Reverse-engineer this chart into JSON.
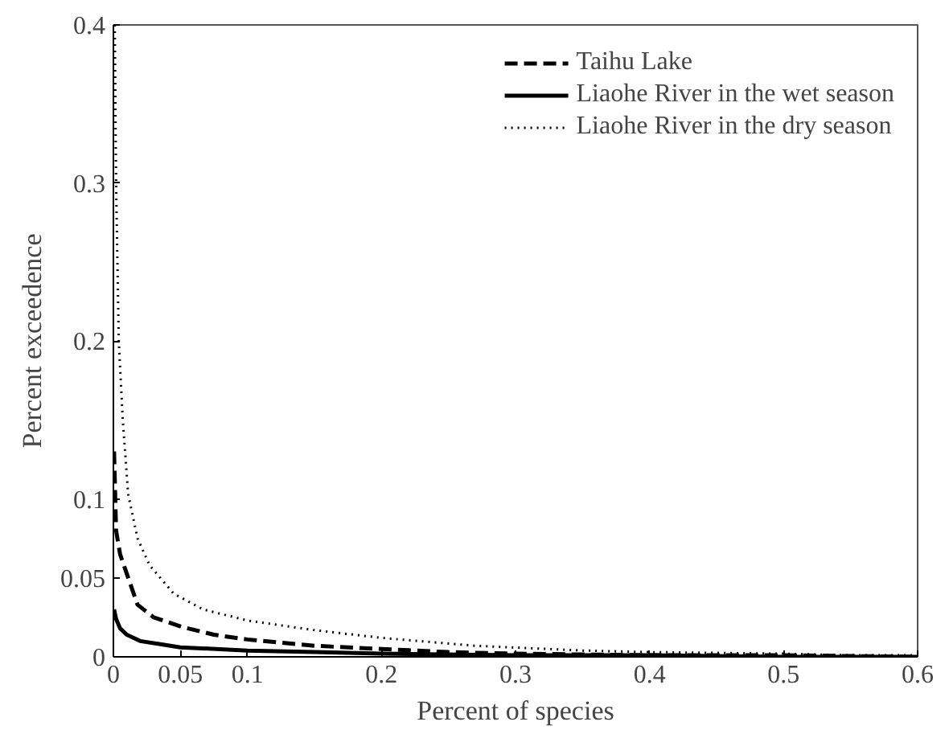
{
  "chart_data": {
    "type": "line",
    "xlabel": "Percent of species",
    "ylabel": "Percent exceedence",
    "xlim": [
      0,
      0.6
    ],
    "ylim": [
      0,
      0.4
    ],
    "xticks": [
      0,
      0.05,
      0.1,
      0.2,
      0.3,
      0.4,
      0.5,
      0.6
    ],
    "yticks": [
      0,
      0.05,
      0.1,
      0.2,
      0.3,
      0.4
    ],
    "grid": false,
    "legend": "top right",
    "marker": "none",
    "series": [
      {
        "name": "Taihu Lake",
        "color": "#000000",
        "line_style": "dashed",
        "x": [
          0.0005,
          0.002,
          0.005,
          0.009,
          0.018,
          0.03,
          0.051,
          0.075,
          0.1,
          0.15,
          0.2,
          0.25,
          0.3,
          0.4,
          0.5,
          0.6
        ],
        "values": [
          0.13,
          0.08,
          0.065,
          0.055,
          0.033,
          0.025,
          0.019,
          0.014,
          0.011,
          0.007,
          0.005,
          0.003,
          0.002,
          0.001,
          0.001,
          0
        ]
      },
      {
        "name": "Liaohe River in the wet season",
        "color": "#000000",
        "line_style": "solid",
        "x": [
          0.0005,
          0.002,
          0.005,
          0.01,
          0.02,
          0.035,
          0.05,
          0.1,
          0.15,
          0.2,
          0.3,
          0.4,
          0.5,
          0.6
        ],
        "values": [
          0.03,
          0.024,
          0.018,
          0.014,
          0.01,
          0.008,
          0.006,
          0.004,
          0.003,
          0.002,
          0.001,
          0.001,
          0,
          0
        ]
      },
      {
        "name": "Liaohe River in the dry season",
        "color": "#000000",
        "line_style": "dotted",
        "x": [
          0.001,
          0.002,
          0.004,
          0.007,
          0.011,
          0.018,
          0.027,
          0.045,
          0.067,
          0.1,
          0.149,
          0.2,
          0.27,
          0.35,
          0.4,
          0.5,
          0.55,
          0.6
        ],
        "values": [
          0.4,
          0.3,
          0.2,
          0.15,
          0.103,
          0.075,
          0.058,
          0.04,
          0.03,
          0.023,
          0.017,
          0.012,
          0.007,
          0.004,
          0.003,
          0.002,
          0.001,
          0.001
        ]
      }
    ]
  }
}
